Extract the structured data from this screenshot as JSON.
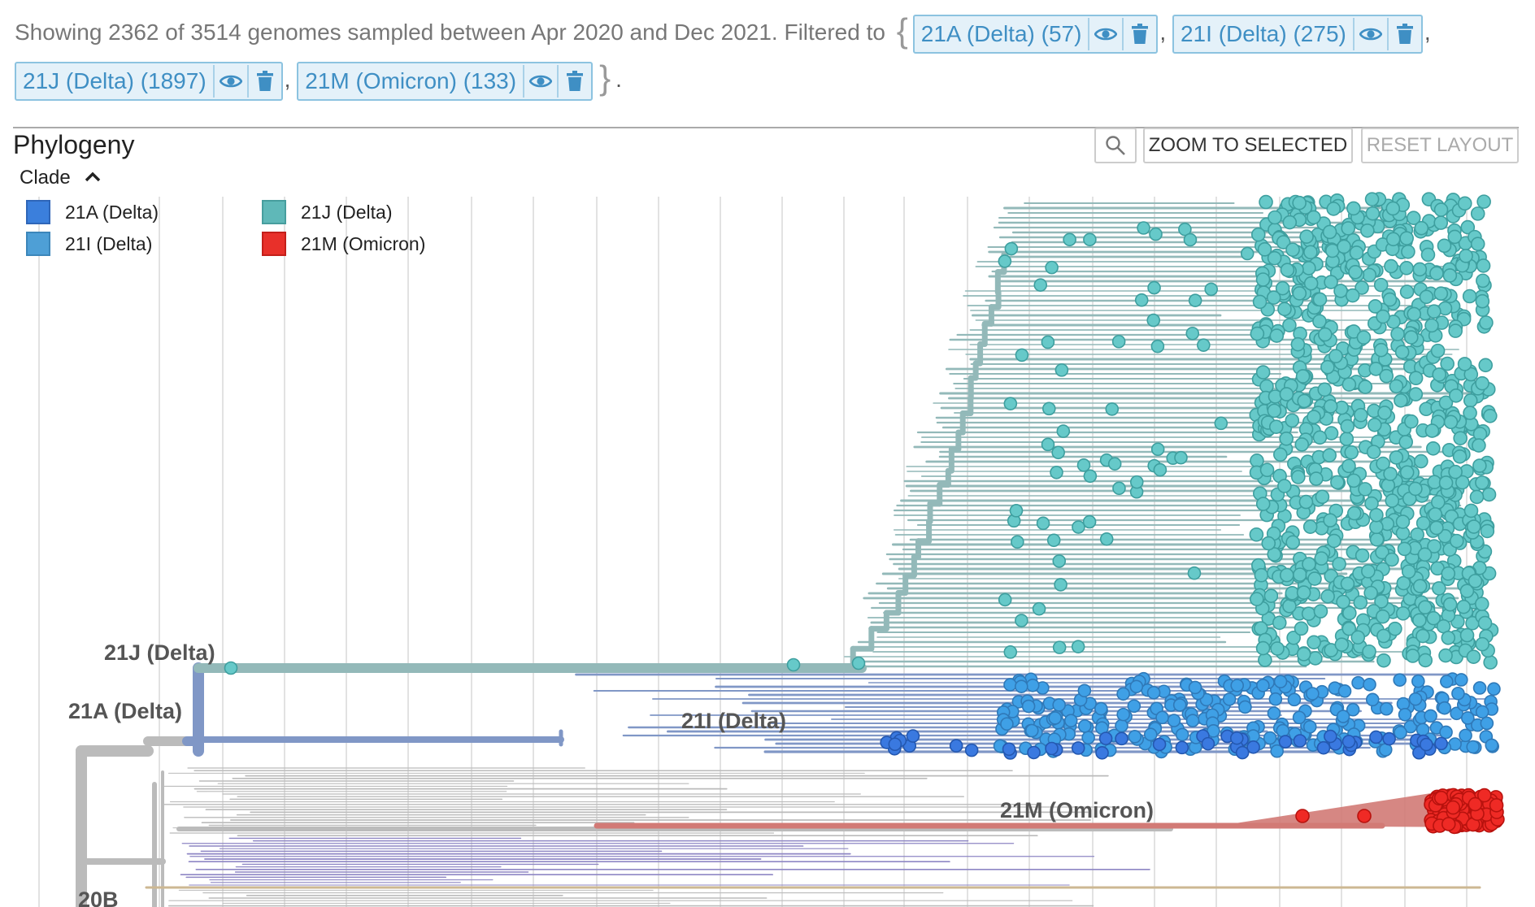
{
  "status_bar": {
    "prefix": "Showing 2362 of 3514 genomes sampled between Apr 2020 and Dec 2021. Filtered to",
    "chips": [
      {
        "label": "21A (Delta) (57)"
      },
      {
        "label": "21I (Delta) (275)"
      },
      {
        "label": "21J (Delta) (1897)"
      },
      {
        "label": "21M (Omicron) (133)"
      }
    ],
    "comma": ",",
    "brace_open": "{",
    "brace_close": "}",
    "period": "."
  },
  "panel": {
    "title": "Phylogeny",
    "zoom_to_selected_label": "ZOOM TO SELECTED",
    "reset_layout_label": "RESET LAYOUT",
    "search_icon": "magnifier-icon"
  },
  "legend": {
    "title": "Clade",
    "toggle_icon": "chevron-up-icon",
    "items": [
      {
        "label": "21A (Delta)",
        "color": "#3b7fdc"
      },
      {
        "label": "21I (Delta)",
        "color": "#4e9fd6"
      },
      {
        "label": "21J (Delta)",
        "color": "#5fb8b8"
      },
      {
        "label": "21M (Omicron)",
        "color": "#e8302a"
      }
    ]
  },
  "tree": {
    "branch_labels": {
      "clade_21j": "21J (Delta)",
      "clade_21a": "21A (Delta)",
      "clade_21i": "21I (Delta)",
      "clade_21m": "21M (Omicron)",
      "clade_20b": "20B"
    },
    "colors": {
      "branch_21j": "#93b9b9",
      "node_21j": "#66c9c9",
      "node_21j_stroke": "#3e9f9f",
      "branch_21i": "#8097c6",
      "node_21i": "#3fa0e6",
      "node_21a": "#3a79e0",
      "branch_21m": "#d27a76",
      "node_21m": "#ef2a25",
      "branch_other": "#bbbbbb",
      "branch_purple": "#8e86c4",
      "branch_tan": "#cdb893",
      "grid": "#e2e2e2"
    }
  }
}
